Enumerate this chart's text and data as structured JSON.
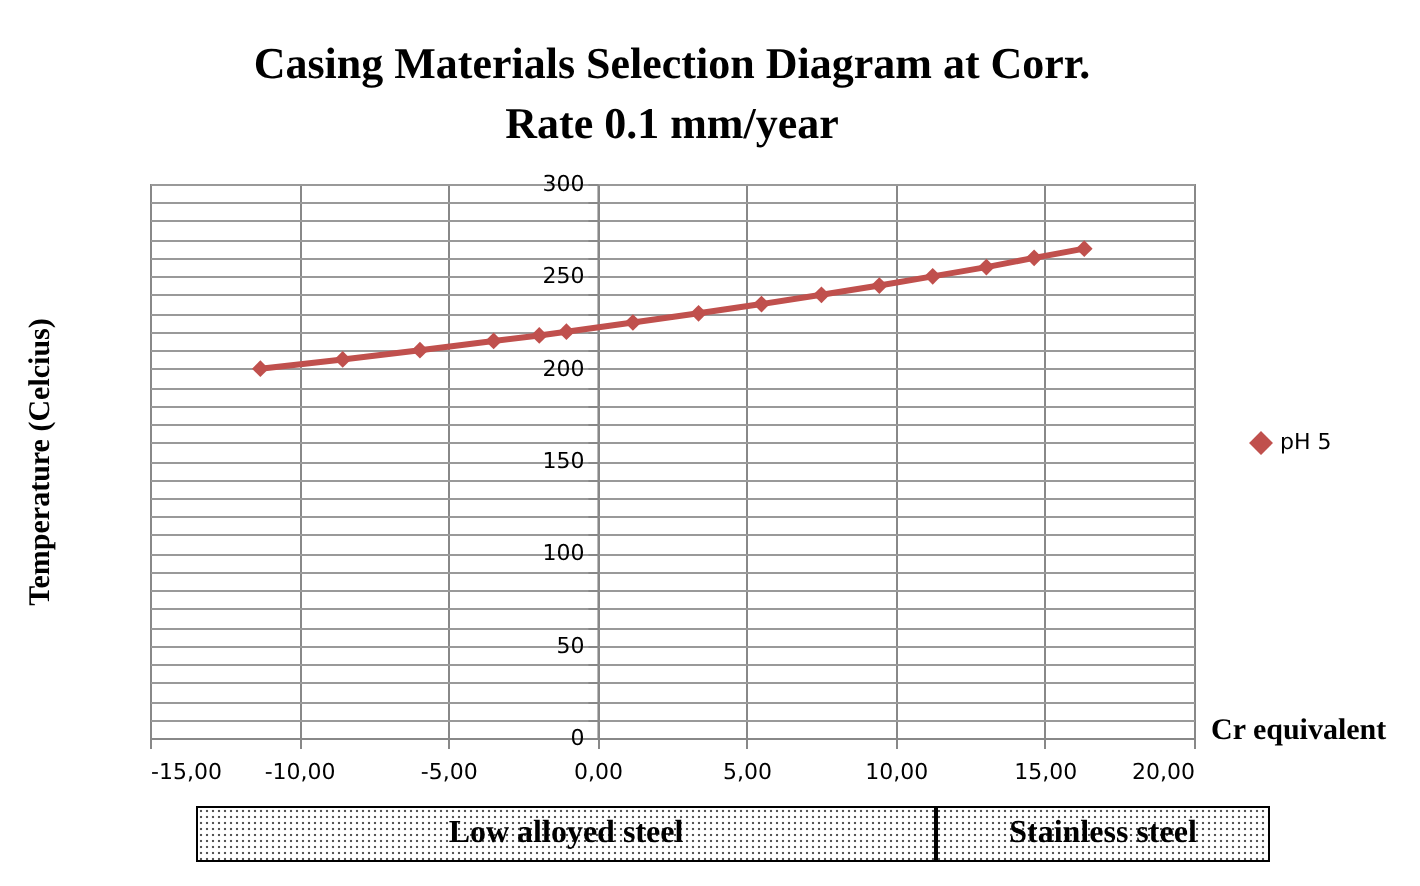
{
  "chart_data": {
    "type": "line",
    "title": "Casing Materials Selection Diagram at Corr. Rate 0.1 mm/year",
    "xlabel": "Cr equivalent",
    "ylabel": "Temperature  (Celcius)",
    "x": [
      -11.3,
      -8.54,
      -5.95,
      -3.48,
      -1.95,
      -1.04,
      1.19,
      3.39,
      5.5,
      7.51,
      9.45,
      11.24,
      13.04,
      14.64,
      16.32
    ],
    "series": [
      {
        "name": "pH 5",
        "color": "#c0504d",
        "values": [
          200,
          205,
          210,
          215,
          218,
          220,
          225,
          230,
          235,
          240,
          245,
          250,
          255,
          260,
          265
        ]
      }
    ],
    "xlim": [
      -15,
      20
    ],
    "xticks": [
      {
        "value": -15,
        "label": "-15,00"
      },
      {
        "value": -10,
        "label": "-10,00"
      },
      {
        "value": -5,
        "label": "-5,00"
      },
      {
        "value": 0,
        "label": "0,00"
      },
      {
        "value": 5,
        "label": "5,00"
      },
      {
        "value": 10,
        "label": "10,00"
      },
      {
        "value": 15,
        "label": "15,00"
      },
      {
        "value": 20,
        "label": "20,00"
      }
    ],
    "ylim": [
      0,
      300
    ],
    "yticks": [
      0,
      {
        "value": 10,
        "label": null
      },
      {
        "value": 20,
        "label": null
      },
      {
        "value": 30,
        "label": null
      },
      {
        "value": 40,
        "label": null
      },
      50,
      {
        "value": 60,
        "label": null
      },
      {
        "value": 70,
        "label": null
      },
      {
        "value": 80,
        "label": null
      },
      {
        "value": 90,
        "label": null
      },
      100,
      {
        "value": 110,
        "label": null
      },
      {
        "value": 120,
        "label": null
      },
      {
        "value": 130,
        "label": null
      },
      {
        "value": 140,
        "label": null
      },
      150,
      {
        "value": 160,
        "label": null
      },
      {
        "value": 170,
        "label": null
      },
      {
        "value": 180,
        "label": null
      },
      {
        "value": 190,
        "label": null
      },
      200,
      {
        "value": 210,
        "label": null
      },
      {
        "value": 220,
        "label": null
      },
      {
        "value": 230,
        "label": null
      },
      {
        "value": 240,
        "label": null
      },
      250,
      {
        "value": 260,
        "label": null
      },
      {
        "value": 270,
        "label": null
      },
      {
        "value": 280,
        "label": null
      },
      {
        "value": 290,
        "label": null
      },
      300
    ],
    "grid": true,
    "legend": "right",
    "marker": "diamond",
    "line_style": "solid",
    "annotations": [
      "Low alloyed steel",
      "Stainless steel"
    ]
  }
}
